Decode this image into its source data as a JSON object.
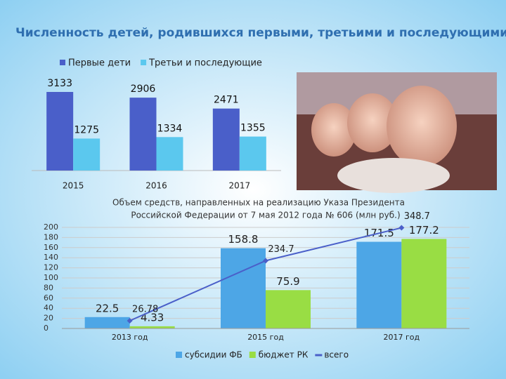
{
  "chart_data": [
    {
      "type": "bar",
      "title": "Численность детей, родившихся первыми, третьими и последующими",
      "categories": [
        "2015",
        "2016",
        "2017"
      ],
      "series": [
        {
          "name": "Первые дети",
          "color": "#4a5fc9",
          "values": [
            3133,
            2906,
            2471
          ]
        },
        {
          "name": "Третьи и последующие",
          "color": "#5bc8ee",
          "values": [
            1275,
            1334,
            1355
          ]
        }
      ]
    },
    {
      "type": "combo",
      "title": "Объем средств, направленных на реализацию Указа Президента",
      "subtitle": "Российской Федерации от 7 мая 2012 года № 606 (млн руб.)",
      "categories": [
        "2013 год",
        "2015 год",
        "2017 год"
      ],
      "ylim": [
        0,
        200
      ],
      "yticks": [
        0,
        20,
        40,
        60,
        80,
        100,
        120,
        140,
        160,
        180,
        200
      ],
      "y2lim": [
        0,
        350
      ],
      "series": [
        {
          "name": "субсидии ФБ",
          "color": "#4da6e6",
          "values": [
            22.5,
            158.8,
            171.5
          ]
        },
        {
          "name": "бюджет РК",
          "color": "#99dd44",
          "values": [
            4.33,
            75.9,
            177.2
          ]
        },
        {
          "name": "всего",
          "color": "#4a5fc9",
          "axis": "y2",
          "values": [
            26.78,
            234.7,
            348.7
          ]
        }
      ]
    }
  ]
}
